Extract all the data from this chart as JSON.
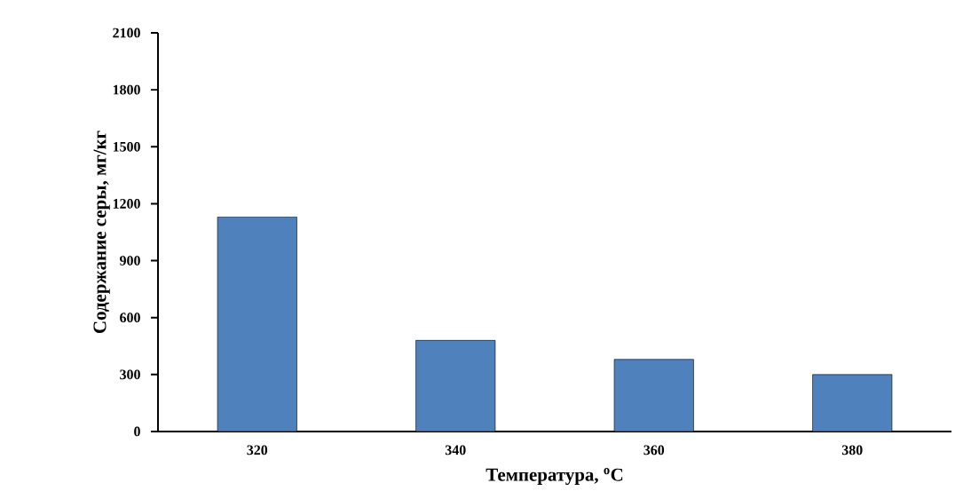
{
  "chart_data": {
    "type": "bar",
    "xlabel": "Температура, $^{o}$C",
    "ylabel": "Содержание серы, мг/кг",
    "categories": [
      "320",
      "340",
      "360",
      "380"
    ],
    "values": [
      1130,
      480,
      380,
      300
    ],
    "color": "#4f81bd",
    "ylim": [
      0,
      2100
    ],
    "yticks": [
      0,
      300,
      600,
      900,
      1200,
      1500,
      1800,
      2100
    ],
    "grid": false
  }
}
